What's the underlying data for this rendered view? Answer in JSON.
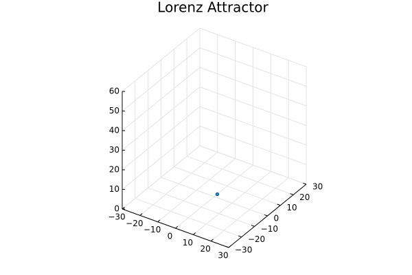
{
  "chart_data": {
    "type": "scatter3d",
    "title": "Lorenz Attractor",
    "x": [
      1
    ],
    "y": [
      1
    ],
    "z": [
      1
    ],
    "color": "#009afa",
    "xlim": [
      -30,
      30
    ],
    "ylim": [
      -30,
      30
    ],
    "zlim": [
      0,
      60
    ],
    "xticks": [
      {
        "value": -30,
        "label": "−30"
      },
      {
        "value": -20,
        "label": "−20"
      },
      {
        "value": -10,
        "label": "−10"
      },
      0,
      10,
      20,
      30
    ],
    "yticks": [
      {
        "value": -30,
        "label": "−30"
      },
      {
        "value": -20,
        "label": "−20"
      },
      {
        "value": -10,
        "label": "−10"
      },
      0,
      10,
      20,
      30
    ],
    "zticks": [
      0,
      10,
      20,
      30,
      40,
      50,
      60
    ],
    "grid": true
  }
}
